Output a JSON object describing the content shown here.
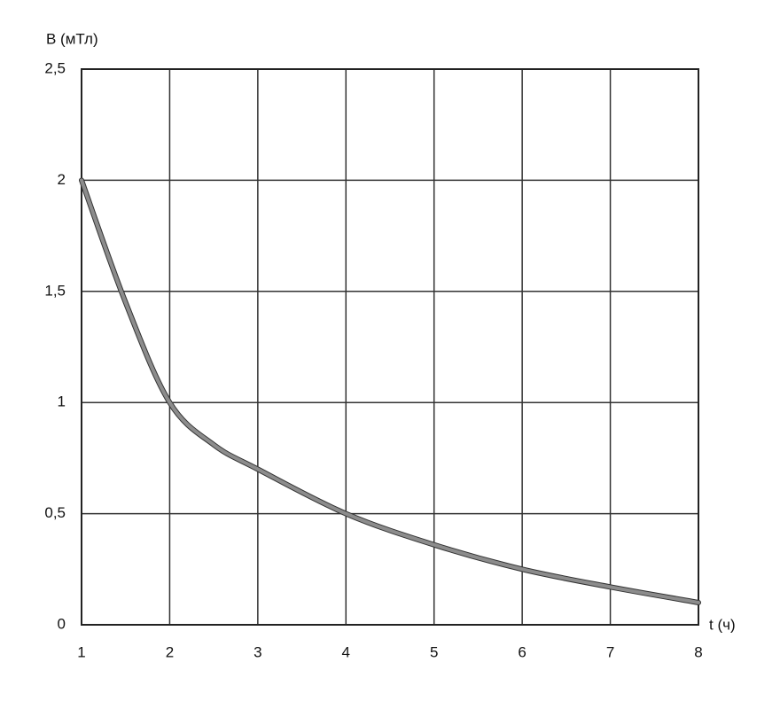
{
  "chart_data": {
    "type": "line",
    "y_label": "B (мТл)",
    "x_label": "t (ч)",
    "x": [
      1,
      1.5,
      2,
      2.5,
      3,
      4,
      5,
      6,
      7,
      8
    ],
    "series": [
      {
        "name": "B",
        "color": "#8c8c8c",
        "values": [
          2,
          1.45,
          1,
          0.81,
          0.7,
          0.5,
          0.36,
          0.25,
          0.17,
          0.1
        ]
      }
    ],
    "xlim": [
      1,
      8
    ],
    "xticks": [
      1,
      2,
      3,
      4,
      5,
      6,
      7,
      8
    ],
    "ylim": [
      0,
      2.5
    ],
    "yticks": [
      0,
      {
        "value": 0.5,
        "label": "0,5"
      },
      1,
      {
        "value": 1.5,
        "label": "1,5"
      },
      2,
      {
        "value": 2.5,
        "label": "2,5"
      }
    ],
    "grid": true
  }
}
